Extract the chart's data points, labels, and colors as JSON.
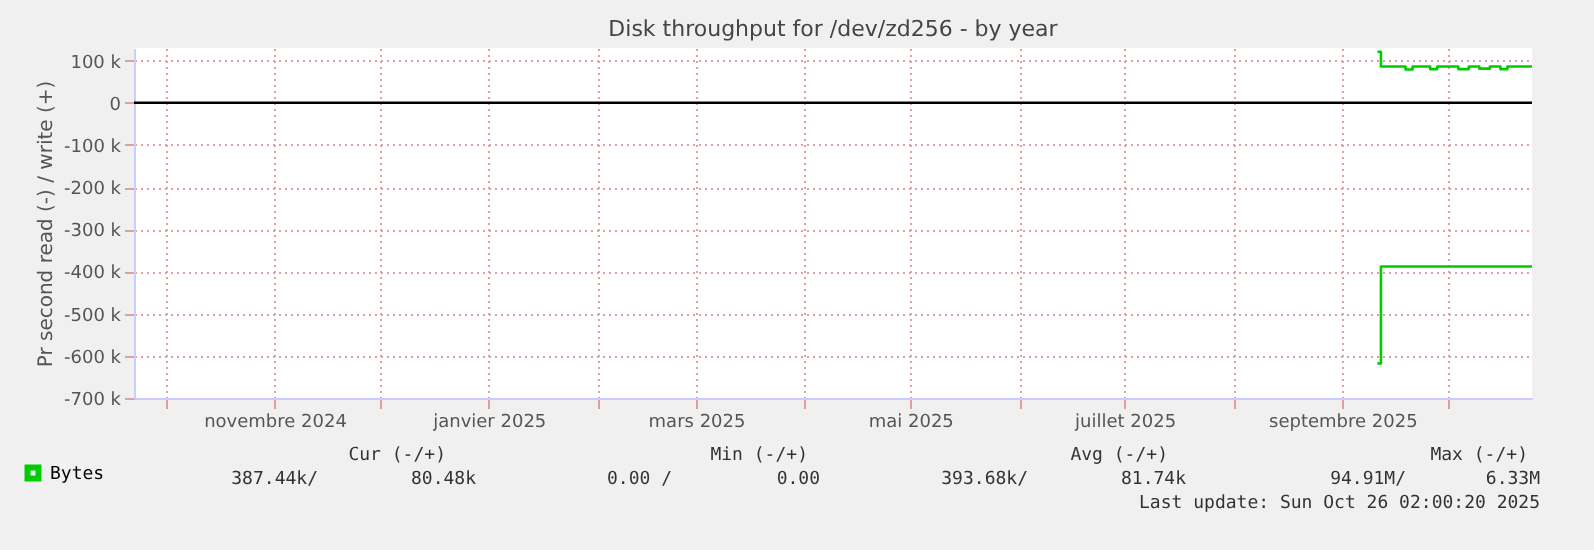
{
  "chart_data": {
    "type": "step",
    "title": "Disk throughput for /dev/zd256 - by year",
    "ylabel": "Pr second read (-) / write (+)",
    "xlim": [
      "2024-09-22",
      "2025-10-25"
    ],
    "xticks": [
      {
        "value": "2024-10-01",
        "label": null
      },
      {
        "value": "2024-11-01",
        "label": "novembre 2024"
      },
      {
        "value": "2024-12-01",
        "label": null
      },
      {
        "value": "2025-01-01",
        "label": "janvier 2025"
      },
      {
        "value": "2025-02-01",
        "label": null
      },
      {
        "value": "2025-03-01",
        "label": "mars 2025"
      },
      {
        "value": "2025-04-01",
        "label": null
      },
      {
        "value": "2025-05-01",
        "label": "mai 2025"
      },
      {
        "value": "2025-06-01",
        "label": null
      },
      {
        "value": "2025-07-01",
        "label": "juillet 2025"
      },
      {
        "value": "2025-08-01",
        "label": null
      },
      {
        "value": "2025-09-01",
        "label": "septembre 2025"
      },
      {
        "value": "2025-10-01",
        "label": null
      }
    ],
    "ylim": [
      -700000,
      130000
    ],
    "yticks": [
      {
        "value": 100000,
        "label": "100 k"
      },
      {
        "value": 0,
        "label": "0"
      },
      {
        "value": -100000,
        "label": "-100 k"
      },
      {
        "value": -200000,
        "label": "-200 k"
      },
      {
        "value": -300000,
        "label": "-300 k"
      },
      {
        "value": -400000,
        "label": "-400 k"
      },
      {
        "value": -500000,
        "label": "-500 k"
      },
      {
        "value": -600000,
        "label": "-600 k"
      },
      {
        "value": -700000,
        "label": "-700 k"
      }
    ],
    "grid": true,
    "legend": "bottom left",
    "series": [
      {
        "name": "Bytes",
        "color": "#00cc00",
        "x": [
          "2025-09-11",
          "2025-09-12",
          "2025-09-19",
          "2025-09-21",
          "2025-09-26",
          "2025-09-28",
          "2025-10-04",
          "2025-10-07",
          "2025-10-10",
          "2025-10-13",
          "2025-10-16",
          "2025-10-18",
          "2025-10-25"
        ],
        "values": [
          121000,
          86000,
          79000,
          86000,
          80000,
          86000,
          80000,
          86000,
          81000,
          86000,
          80000,
          86000,
          86000
        ]
      },
      {
        "color": "#00cc00",
        "x": [
          "2025-09-11",
          "2025-09-12",
          "2025-10-25"
        ],
        "values": [
          -618000,
          -388000,
          -388000
        ]
      }
    ],
    "ref_lines": [
      {
        "axis": "y",
        "value": 0,
        "color": "#000000"
      }
    ],
    "annotations": [
      "Cur (-/+)",
      "Min (-/+)",
      "Avg (-/+)",
      "Max (-/+)",
      "387.44k/",
      "80.48k",
      "0.00 /",
      "0.00",
      "393.68k/",
      "81.74k",
      "94.91M/",
      "6.33M",
      "Last update: Sun Oct 26 02:00:20 2025"
    ]
  }
}
